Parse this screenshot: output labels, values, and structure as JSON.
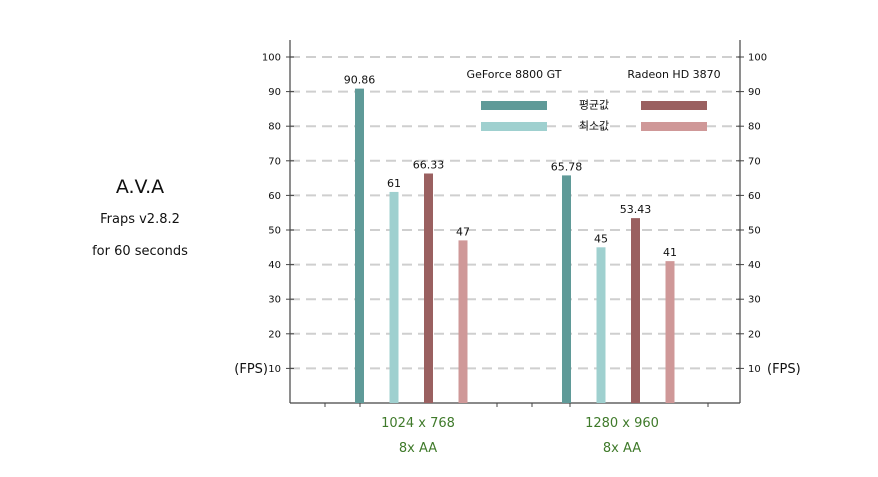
{
  "side": {
    "title": "A.V.A",
    "line1": "Fraps v2.8.2",
    "line2": "for 60 seconds"
  },
  "chart_data": {
    "type": "bar",
    "y_unit_label": "(FPS)",
    "ylim": [
      0,
      100
    ],
    "yticks": [
      10,
      20,
      30,
      40,
      50,
      60,
      70,
      80,
      90,
      100
    ],
    "grid": true,
    "legend_position": "top-right",
    "legend": {
      "columns": [
        "GeForce 8800 GT",
        "Radeon HD 3870"
      ],
      "rows": [
        "평균값",
        "최소값"
      ]
    },
    "categories": [
      {
        "line1": "1024 x 768",
        "line2": "8x AA"
      },
      {
        "line1": "1280 x 960",
        "line2": "8x AA"
      }
    ],
    "series": [
      {
        "card": "GeForce 8800 GT",
        "stat": "평균값",
        "values": [
          90.86,
          65.78
        ],
        "labels": [
          "90.86",
          "65.78"
        ],
        "color": "#5f9a98"
      },
      {
        "card": "GeForce 8800 GT",
        "stat": "최소값",
        "values": [
          61,
          45
        ],
        "labels": [
          "61",
          "45"
        ],
        "color": "#9fd0cf"
      },
      {
        "card": "Radeon HD 3870",
        "stat": "평균값",
        "values": [
          66.33,
          53.43
        ],
        "labels": [
          "66.33",
          "53.43"
        ],
        "color": "#9a6060"
      },
      {
        "card": "Radeon HD 3870",
        "stat": "최소값",
        "values": [
          47,
          41
        ],
        "labels": [
          "47",
          "41"
        ],
        "color": "#cf9898"
      }
    ]
  }
}
